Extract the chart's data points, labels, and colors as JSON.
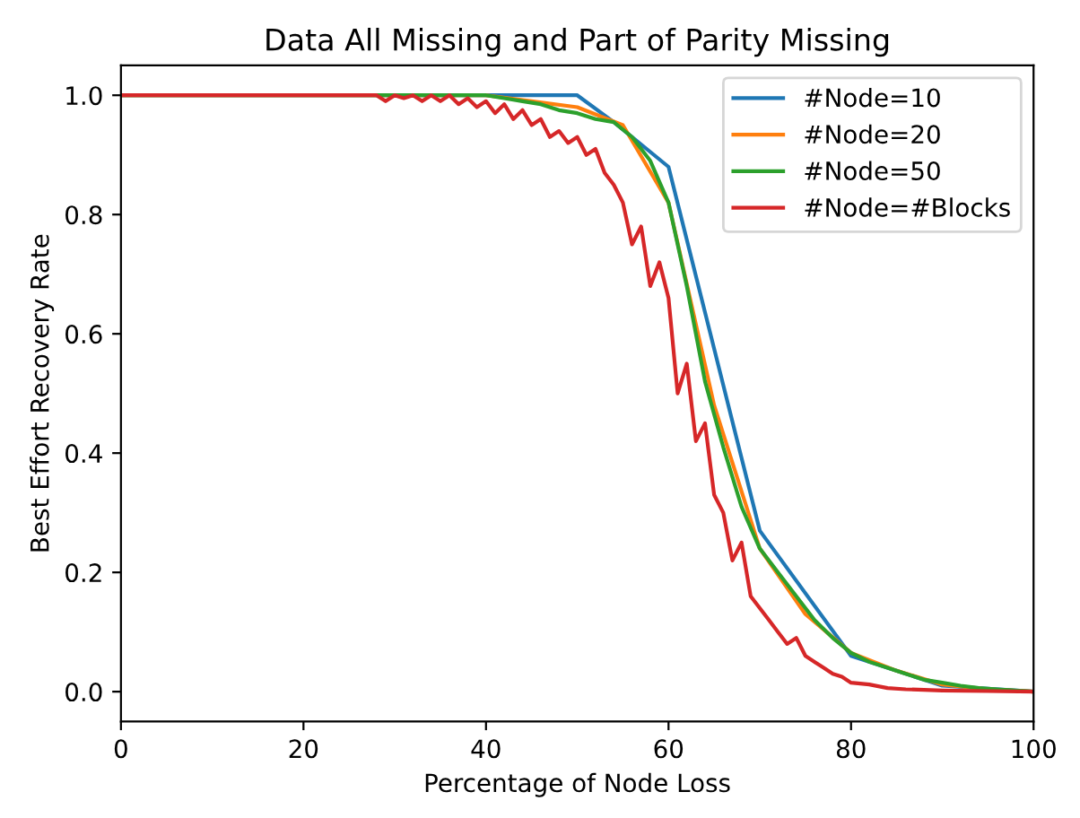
{
  "chart_data": {
    "type": "line",
    "title": "Data All Missing and Part of Parity Missing",
    "xlabel": "Percentage of Node Loss",
    "ylabel": "Best Effort Recovery Rate",
    "xlim": [
      0,
      100
    ],
    "ylim": [
      -0.05,
      1.05
    ],
    "xticks": [
      0,
      20,
      40,
      60,
      80,
      100
    ],
    "yticks": [
      {
        "value": 0,
        "label": "0.0"
      },
      0.2,
      0.4,
      0.6,
      0.8,
      {
        "value": 1,
        "label": "1.0"
      }
    ],
    "legend": "top right",
    "grid": false,
    "series": [
      {
        "name": "#Node=10",
        "color": "#1f77b4",
        "x": [
          0,
          50,
          54,
          60,
          70,
          80,
          90,
          100
        ],
        "values": [
          1.0,
          1.0,
          0.955,
          0.88,
          0.27,
          0.06,
          0.01,
          0.0
        ]
      },
      {
        "name": "#Node=20",
        "color": "#ff7f0e",
        "x": [
          0,
          40,
          45,
          50,
          55,
          60,
          65,
          70,
          75,
          80,
          85,
          90,
          95,
          100
        ],
        "values": [
          1.0,
          1.0,
          0.99,
          0.98,
          0.95,
          0.82,
          0.48,
          0.24,
          0.13,
          0.065,
          0.035,
          0.012,
          0.004,
          0.0
        ]
      },
      {
        "name": "#Node=50",
        "color": "#2ca02c",
        "x": [
          0,
          40,
          42,
          44,
          46,
          48,
          50,
          52,
          54,
          56,
          58,
          60,
          62,
          64,
          66,
          68,
          70,
          72,
          74,
          76,
          78,
          80,
          82,
          84,
          86,
          88,
          90,
          92,
          94,
          96,
          98,
          100
        ],
        "values": [
          1.0,
          1.0,
          0.995,
          0.99,
          0.985,
          0.975,
          0.97,
          0.96,
          0.955,
          0.93,
          0.89,
          0.82,
          0.68,
          0.52,
          0.41,
          0.31,
          0.24,
          0.2,
          0.16,
          0.12,
          0.09,
          0.065,
          0.05,
          0.04,
          0.03,
          0.02,
          0.015,
          0.01,
          0.006,
          0.004,
          0.002,
          0.0
        ]
      },
      {
        "name": "#Node=#Blocks",
        "color": "#d62728",
        "x": [
          0,
          28,
          29,
          30,
          31,
          32,
          33,
          34,
          35,
          36,
          37,
          38,
          39,
          40,
          41,
          42,
          43,
          44,
          45,
          46,
          47,
          48,
          49,
          50,
          51,
          52,
          53,
          54,
          55,
          56,
          57,
          58,
          59,
          60,
          61,
          62,
          63,
          64,
          65,
          66,
          67,
          68,
          69,
          70,
          71,
          72,
          73,
          74,
          75,
          76,
          77,
          78,
          79,
          80,
          82,
          84,
          86,
          88,
          90,
          95,
          100
        ],
        "values": [
          1.0,
          1.0,
          0.99,
          1.0,
          0.995,
          1.0,
          0.99,
          1.0,
          0.99,
          1.0,
          0.985,
          0.995,
          0.98,
          0.99,
          0.97,
          0.985,
          0.96,
          0.975,
          0.95,
          0.96,
          0.93,
          0.94,
          0.92,
          0.93,
          0.9,
          0.91,
          0.87,
          0.85,
          0.82,
          0.75,
          0.78,
          0.68,
          0.72,
          0.66,
          0.5,
          0.55,
          0.42,
          0.45,
          0.33,
          0.3,
          0.22,
          0.25,
          0.16,
          0.14,
          0.12,
          0.1,
          0.08,
          0.09,
          0.06,
          0.05,
          0.04,
          0.03,
          0.025,
          0.015,
          0.012,
          0.006,
          0.004,
          0.003,
          0.002,
          0.001,
          0.0
        ]
      }
    ]
  }
}
